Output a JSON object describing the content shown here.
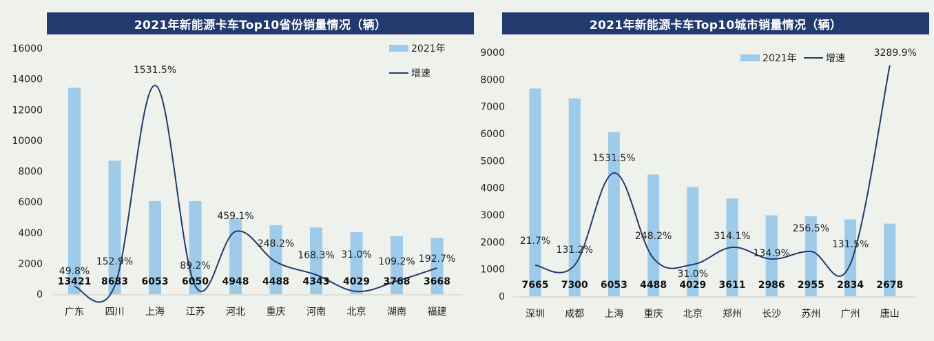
{
  "chart_data": [
    {
      "type": "bar",
      "title": "2021年新能源卡车Top10省份销量情况（辆）",
      "categories": [
        "广东",
        "四川",
        "上海",
        "江苏",
        "河北",
        "重庆",
        "河南",
        "北京",
        "湖南",
        "福建"
      ],
      "series": [
        {
          "name": "2021年",
          "type": "bar",
          "values": [
            13421,
            8683,
            6053,
            6050,
            4948,
            4488,
            4343,
            4029,
            3768,
            3668
          ]
        },
        {
          "name": "增速",
          "type": "line",
          "values": [
            "49.8%",
            "152.9%",
            "1531.5%",
            "89.2%",
            "459.1%",
            "248.2%",
            "168.3%",
            "31.0%",
            "109.2%",
            "192.7%"
          ]
        }
      ],
      "ylim": [
        0,
        16000
      ],
      "yticks": [
        0,
        2000,
        4000,
        6000,
        8000,
        10000,
        12000,
        14000,
        16000
      ],
      "legend": "top-right",
      "grid": false
    },
    {
      "type": "bar",
      "title": "2021年新能源卡车Top10城市销量情况（辆）",
      "categories": [
        "深圳",
        "成都",
        "上海",
        "重庆",
        "北京",
        "郑州",
        "长沙",
        "苏州",
        "广州",
        "唐山"
      ],
      "series": [
        {
          "name": "2021年",
          "type": "bar",
          "values": [
            7665,
            7300,
            6053,
            4488,
            4029,
            3611,
            2986,
            2955,
            2834,
            2678
          ]
        },
        {
          "name": "增速",
          "type": "line",
          "values": [
            "21.7%",
            "131.2%",
            "1531.5%",
            "248.2%",
            "31.0%",
            "314.1%",
            "134.9%",
            "256.5%",
            "131.5%",
            "3289.9%"
          ]
        }
      ],
      "ylim": [
        0,
        9000
      ],
      "yticks": [
        0,
        1000,
        2000,
        3000,
        4000,
        5000,
        6000,
        7000,
        8000,
        9000
      ],
      "legend": "top-right",
      "grid": false
    }
  ],
  "colors": {
    "bar": "#9ecbea",
    "line": "#223a6e",
    "title_bg": "#223a6e"
  }
}
